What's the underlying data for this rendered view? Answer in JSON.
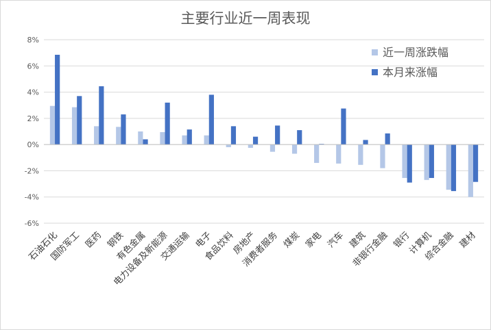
{
  "chart_data": {
    "type": "bar",
    "title": "主要行业近一周表现",
    "categories": [
      "石油石化",
      "国防军工",
      "医药",
      "钢铁",
      "有色金属",
      "电力设备及新能源",
      "交通运输",
      "电子",
      "食品饮料",
      "房地产",
      "消费者服务",
      "煤炭",
      "家电",
      "汽车",
      "建筑",
      "非银行金融",
      "银行",
      "计算机",
      "综合金融",
      "建材"
    ],
    "series": [
      {
        "name": "近一周涨跌幅",
        "color": "#b4c7e7",
        "values": [
          2.95,
          2.85,
          1.4,
          1.35,
          1.0,
          0.95,
          0.7,
          0.7,
          -0.2,
          -0.25,
          -0.55,
          -0.7,
          -1.4,
          -1.45,
          -1.55,
          -1.8,
          -2.55,
          -2.7,
          -3.45,
          -4.0
        ]
      },
      {
        "name": "本月来涨幅",
        "color": "#4472c4",
        "values": [
          6.85,
          3.7,
          4.45,
          2.3,
          0.4,
          3.2,
          1.15,
          3.8,
          1.4,
          0.6,
          1.45,
          1.1,
          0.05,
          2.75,
          0.35,
          0.85,
          -2.9,
          -2.55,
          -3.55,
          -2.85
        ]
      }
    ],
    "ylim": [
      -6,
      8
    ],
    "yticks": [
      -6,
      -4,
      -2,
      0,
      2,
      4,
      6,
      8
    ],
    "ytick_labels": [
      "-6%",
      "-4%",
      "-2%",
      "0%",
      "2%",
      "4%",
      "6%",
      "8%"
    ],
    "grid": true,
    "legend_position": "top-right"
  }
}
